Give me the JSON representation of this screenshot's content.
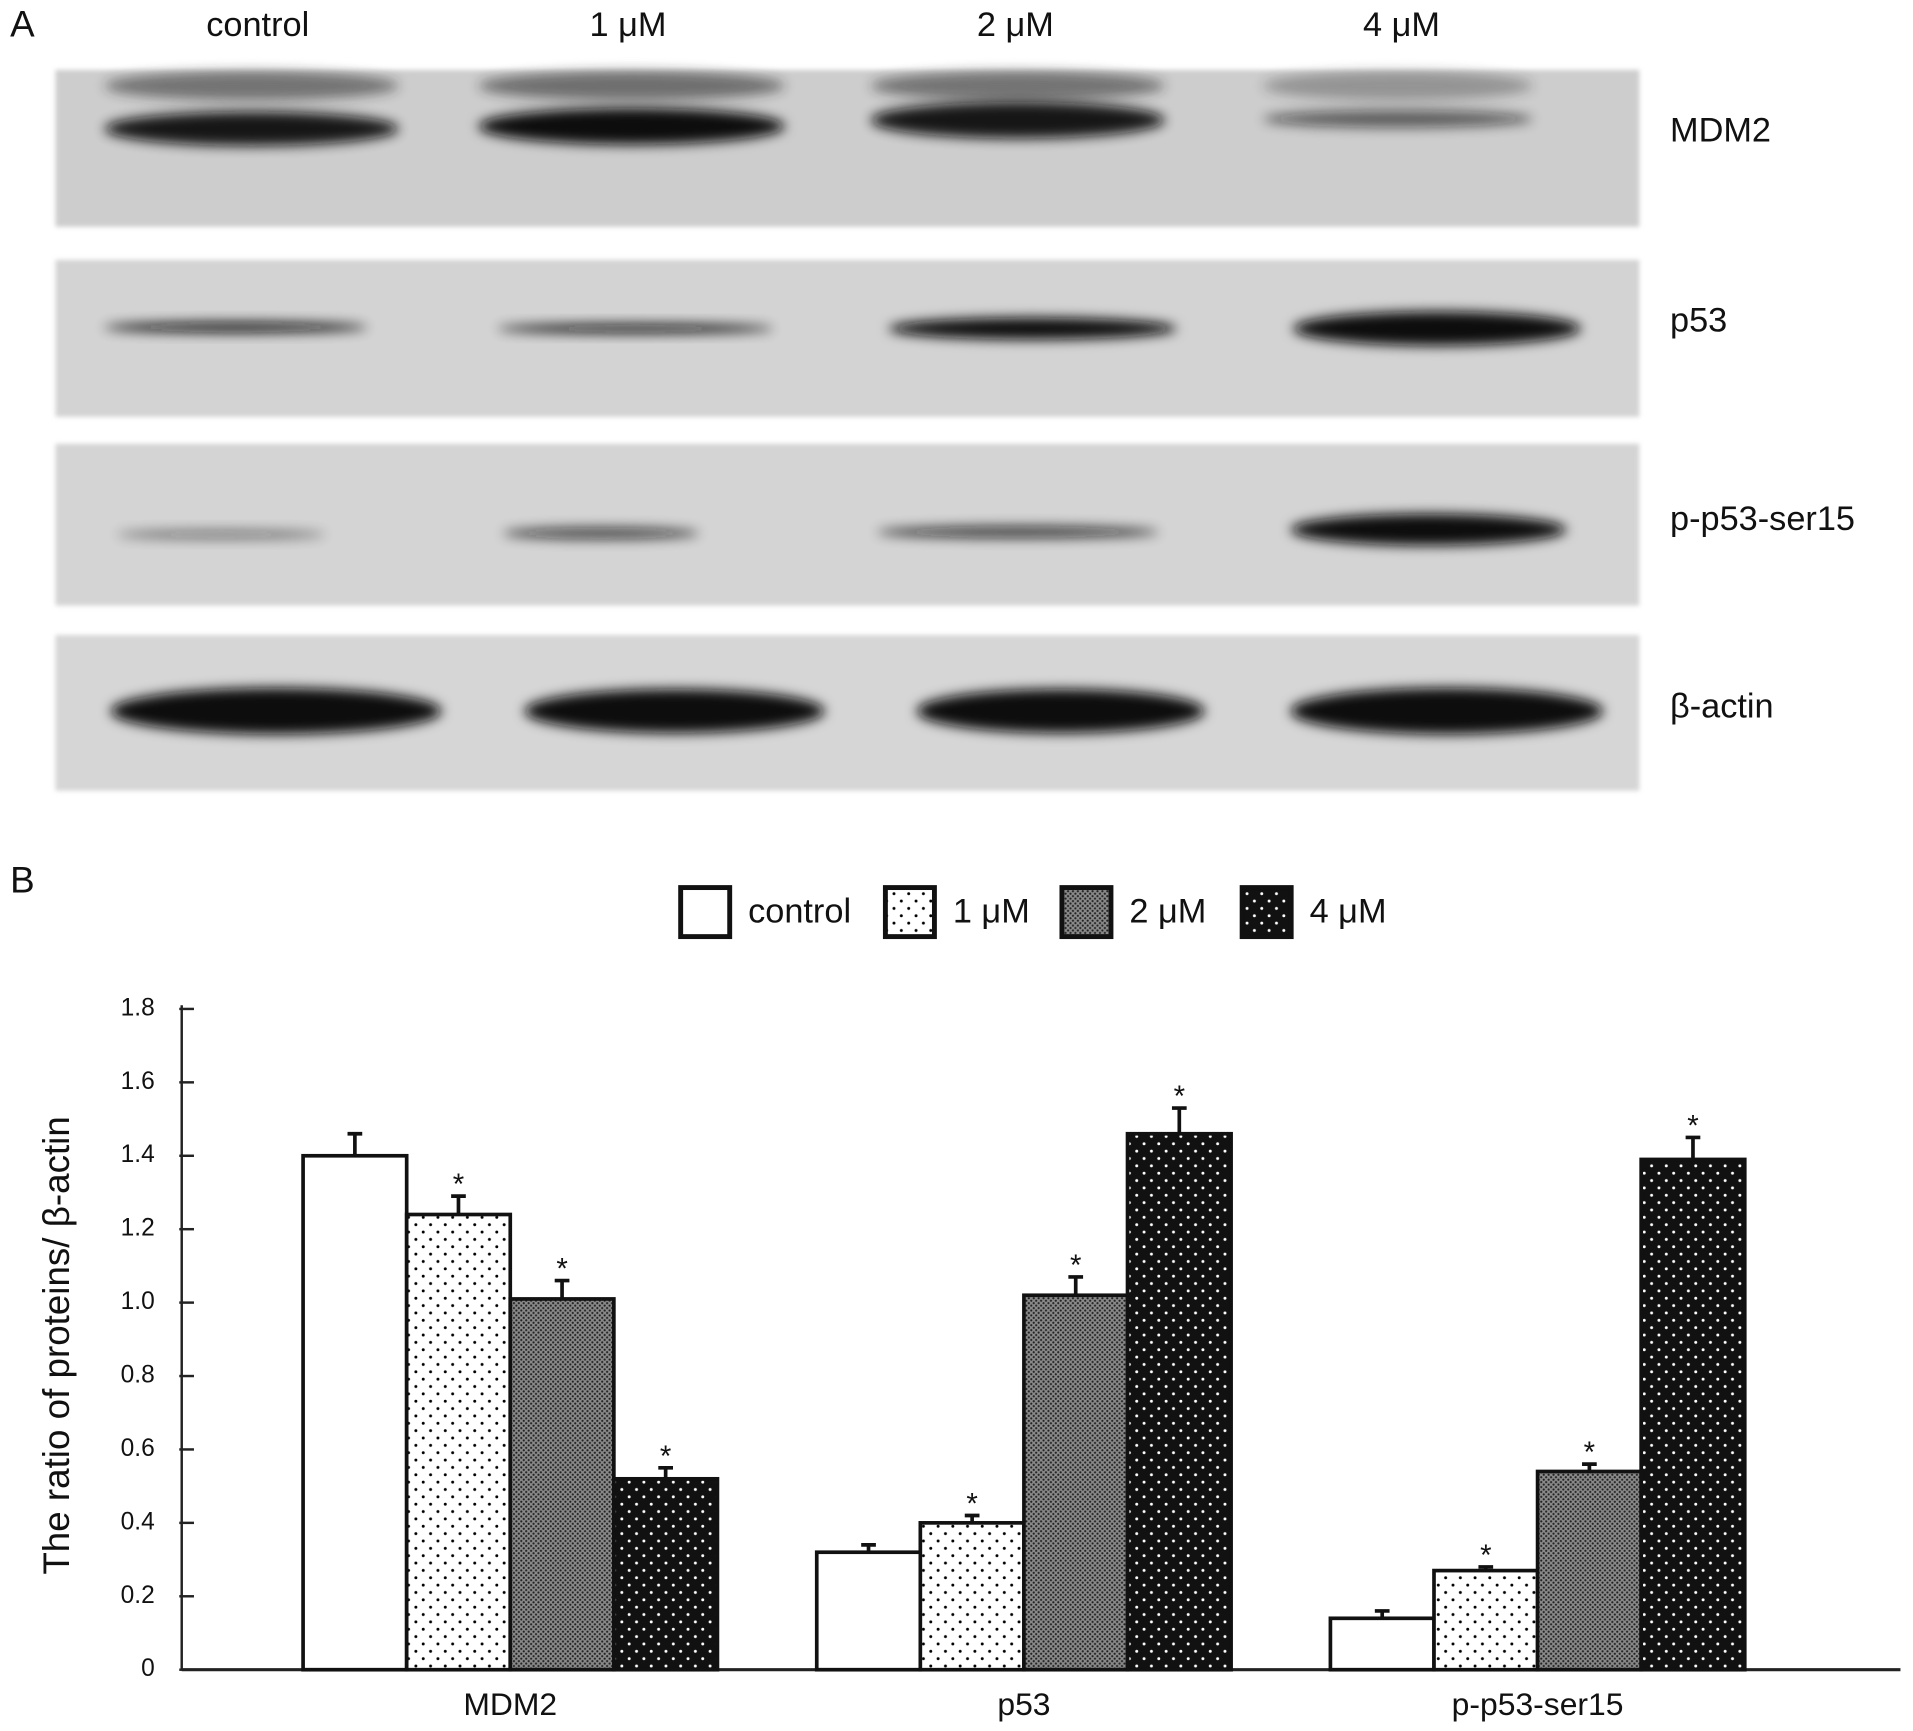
{
  "panel_a": {
    "label": "A",
    "lanes": [
      "control",
      "1 μM",
      "2 μM",
      "4 μM"
    ],
    "proteins": [
      "MDM2",
      "p53",
      "p-p53-ser15",
      "β-actin"
    ]
  },
  "panel_b": {
    "label": "B"
  },
  "chart_data": {
    "type": "bar",
    "ylabel": "The ratio of proteins/ β-actin",
    "categories": [
      "MDM2",
      "p53",
      "p-p53-ser15"
    ],
    "series": [
      {
        "name": "control",
        "color": "#ffffff",
        "pattern": "solid",
        "values": [
          1.4,
          0.32,
          0.14
        ],
        "errors": [
          0.06,
          0.02,
          0.02
        ],
        "markers": [
          null,
          null,
          null
        ]
      },
      {
        "name": "1 μM",
        "color": "#ffffff",
        "pattern": "dots",
        "values": [
          1.24,
          0.4,
          0.27
        ],
        "errors": [
          0.05,
          0.02,
          0.01
        ],
        "markers": [
          "*",
          "*",
          "*"
        ]
      },
      {
        "name": "2 μM",
        "color": "#8a8a8a",
        "pattern": "dither",
        "values": [
          1.01,
          1.02,
          0.54
        ],
        "errors": [
          0.05,
          0.05,
          0.02
        ],
        "markers": [
          "*",
          "*",
          "*"
        ]
      },
      {
        "name": "4 μM",
        "color": "#111111",
        "pattern": "dots",
        "values": [
          0.52,
          1.46,
          1.39
        ],
        "errors": [
          0.03,
          0.07,
          0.06
        ],
        "markers": [
          "*",
          "*",
          "*"
        ]
      }
    ],
    "ylim": [
      0,
      1.8
    ],
    "yticks": [
      0,
      0.2,
      0.4,
      0.6,
      0.8,
      {
        "value": 1,
        "label": "1.0"
      },
      1.2,
      1.4,
      1.6,
      1.8
    ]
  }
}
